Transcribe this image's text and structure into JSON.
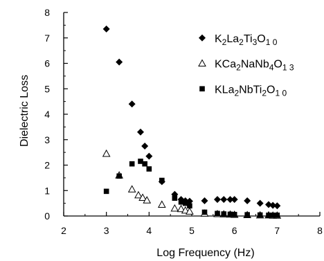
{
  "chart_data": {
    "type": "scatter",
    "xlabel": "Log Frequency (Hz)",
    "ylabel": "Dielectric Loss",
    "xlim": [
      2,
      8
    ],
    "ylim": [
      0,
      8
    ],
    "xticks": [
      "2",
      "3",
      "4",
      "5",
      "6",
      "7",
      "8"
    ],
    "yticks": [
      "0",
      "1",
      "2",
      "3",
      "4",
      "5",
      "6",
      "7",
      "8"
    ],
    "grid": false,
    "legend_position": "top-right",
    "series": [
      {
        "name": "K2La2Ti3O10",
        "marker": "diamond-filled",
        "points": [
          [
            3.0,
            7.35
          ],
          [
            3.3,
            6.05
          ],
          [
            3.6,
            4.4
          ],
          [
            3.8,
            3.3
          ],
          [
            3.9,
            2.75
          ],
          [
            4.0,
            2.35
          ],
          [
            4.3,
            1.35
          ],
          [
            4.6,
            0.85
          ],
          [
            4.75,
            0.65
          ],
          [
            4.85,
            0.6
          ],
          [
            4.95,
            0.58
          ],
          [
            5.3,
            0.6
          ],
          [
            5.6,
            0.65
          ],
          [
            5.75,
            0.65
          ],
          [
            5.9,
            0.65
          ],
          [
            6.0,
            0.65
          ],
          [
            6.3,
            0.6
          ],
          [
            6.6,
            0.5
          ],
          [
            6.8,
            0.45
          ],
          [
            6.9,
            0.42
          ],
          [
            7.0,
            0.4
          ]
        ]
      },
      {
        "name": "KCa2NaNb4O13",
        "marker": "triangle-open",
        "points": [
          [
            3.0,
            2.45
          ],
          [
            3.3,
            1.6
          ],
          [
            3.6,
            1.05
          ],
          [
            3.75,
            0.82
          ],
          [
            3.85,
            0.72
          ],
          [
            3.95,
            0.62
          ],
          [
            4.3,
            0.45
          ],
          [
            4.6,
            0.3
          ],
          [
            4.75,
            0.28
          ],
          [
            4.85,
            0.22
          ],
          [
            4.95,
            0.18
          ],
          [
            5.3,
            0.1
          ],
          [
            5.6,
            0.08
          ],
          [
            5.75,
            0.07
          ],
          [
            5.9,
            0.06
          ],
          [
            6.0,
            0.05
          ],
          [
            6.3,
            0.04
          ],
          [
            6.6,
            0.03
          ],
          [
            6.8,
            0.03
          ],
          [
            6.9,
            0.02
          ],
          [
            7.0,
            0.02
          ]
        ]
      },
      {
        "name": "KLa2NbTi2O10",
        "marker": "square-filled",
        "points": [
          [
            3.0,
            0.97
          ],
          [
            3.3,
            1.57
          ],
          [
            3.6,
            2.05
          ],
          [
            3.8,
            2.15
          ],
          [
            3.9,
            2.05
          ],
          [
            4.0,
            1.85
          ],
          [
            4.3,
            1.4
          ],
          [
            4.6,
            0.7
          ],
          [
            4.75,
            0.55
          ],
          [
            4.85,
            0.5
          ],
          [
            4.95,
            0.4
          ],
          [
            5.3,
            0.15
          ],
          [
            5.6,
            0.1
          ],
          [
            5.75,
            0.08
          ],
          [
            5.9,
            0.07
          ],
          [
            6.0,
            0.06
          ],
          [
            6.3,
            0.05
          ],
          [
            6.6,
            0.04
          ],
          [
            6.8,
            0.03
          ],
          [
            6.9,
            0.03
          ],
          [
            7.0,
            0.03
          ]
        ]
      }
    ]
  },
  "legend": [
    {
      "parts": [
        [
          "K",
          ""
        ],
        [
          "2",
          "sub"
        ],
        [
          "La",
          ""
        ],
        [
          "2",
          "sub"
        ],
        [
          "Ti",
          ""
        ],
        [
          "3",
          "sub"
        ],
        [
          "O",
          ""
        ],
        [
          "1 0",
          "sub"
        ]
      ]
    },
    {
      "parts": [
        [
          "KCa",
          ""
        ],
        [
          "2",
          "sub"
        ],
        [
          "NaNb",
          ""
        ],
        [
          "4",
          "sub"
        ],
        [
          "O",
          ""
        ],
        [
          "1 3",
          "sub"
        ]
      ]
    },
    {
      "parts": [
        [
          "KLa",
          ""
        ],
        [
          "2",
          "sub"
        ],
        [
          "NbTi",
          ""
        ],
        [
          "2",
          "sub"
        ],
        [
          "O",
          ""
        ],
        [
          "1 0",
          "sub"
        ]
      ]
    }
  ]
}
